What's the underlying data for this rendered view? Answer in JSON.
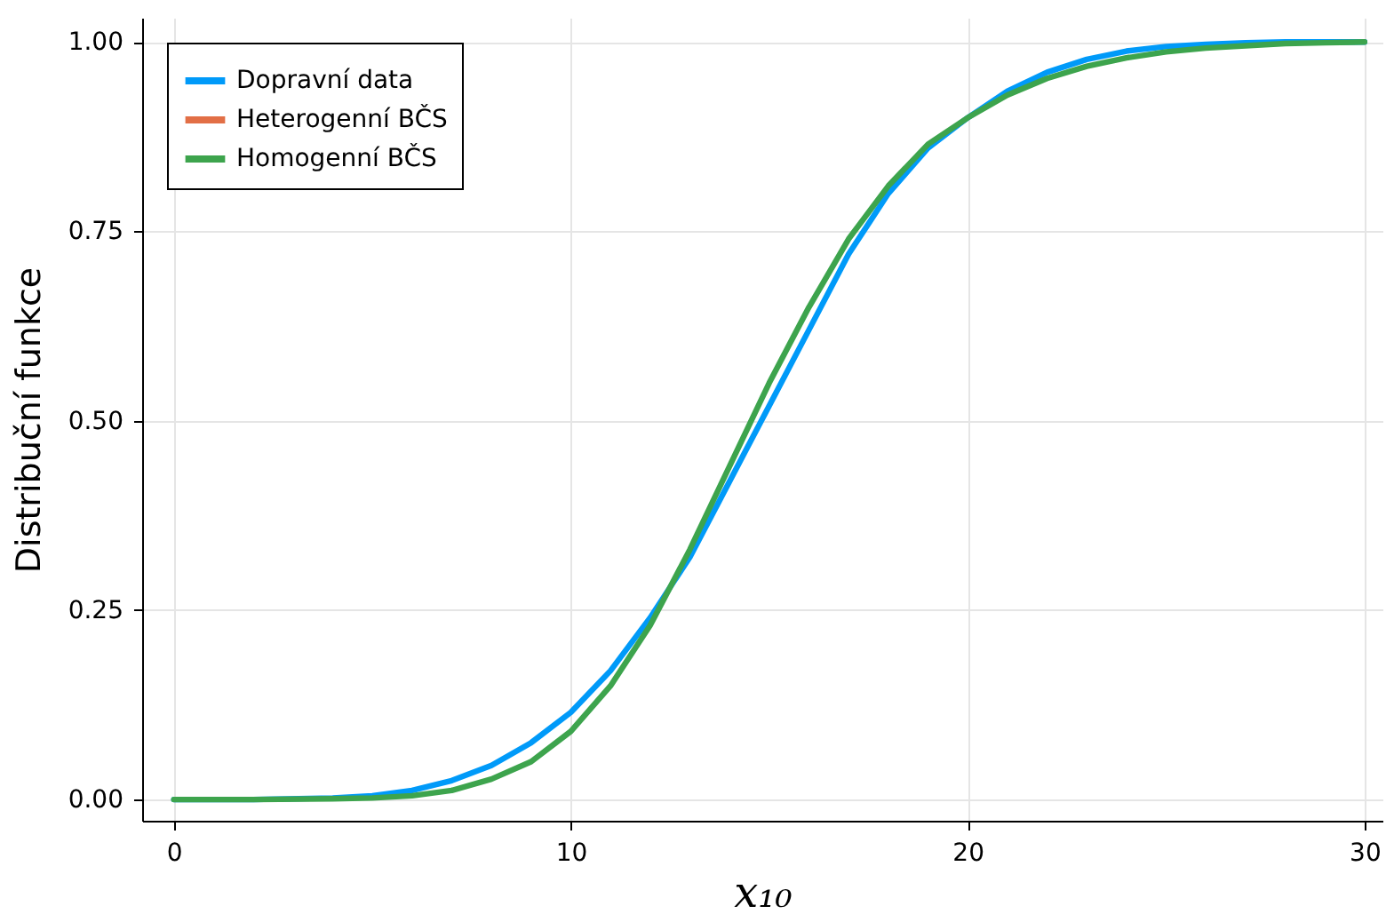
{
  "chart_data": {
    "type": "line",
    "xlabel": "x₁₀",
    "ylabel": "Distribuční funkce",
    "x": [
      0,
      2,
      4,
      5,
      6,
      7,
      8,
      9,
      10,
      11,
      12,
      13,
      14,
      15,
      16,
      17,
      18,
      19,
      20,
      21,
      22,
      23,
      24,
      25,
      26,
      27,
      28,
      29,
      30
    ],
    "series": [
      {
        "name": "Dopravní data",
        "color": "#009af9",
        "values": [
          0,
          0,
          0.002,
          0.005,
          0.012,
          0.025,
          0.045,
          0.075,
          0.115,
          0.17,
          0.24,
          0.32,
          0.42,
          0.52,
          0.62,
          0.72,
          0.8,
          0.86,
          0.9,
          0.935,
          0.96,
          0.977,
          0.988,
          0.994,
          0.997,
          0.999,
          1,
          1,
          1
        ]
      },
      {
        "name": "Heterogenní BČS",
        "color": "#e26f46",
        "values": [
          null,
          null,
          null,
          null,
          null,
          null,
          null,
          null,
          null,
          null,
          null,
          null,
          null,
          null,
          null,
          null,
          null,
          null,
          null,
          null,
          null,
          null,
          null,
          null,
          null,
          null,
          null,
          null,
          null
        ]
      },
      {
        "name": "Homogenní BČS",
        "color": "#3da44d",
        "values": [
          0,
          0,
          0.001,
          0.002,
          0.005,
          0.012,
          0.027,
          0.05,
          0.09,
          0.15,
          0.23,
          0.33,
          0.44,
          0.55,
          0.65,
          0.74,
          0.81,
          0.865,
          0.9,
          0.93,
          0.952,
          0.968,
          0.979,
          0.987,
          0.992,
          0.995,
          0.998,
          0.999,
          1
        ]
      }
    ],
    "xlim": [
      -0.8,
      30.45
    ],
    "ylim": [
      -0.028,
      1.032
    ],
    "xticks": [
      0,
      10,
      20,
      30
    ],
    "yticks": [
      {
        "value": 0,
        "label": "0.00"
      },
      {
        "value": 0.25,
        "label": "0.25"
      },
      {
        "value": 0.5,
        "label": "0.50"
      },
      {
        "value": 0.75,
        "label": "0.75"
      },
      {
        "value": 1,
        "label": "1.00"
      }
    ],
    "grid": true,
    "legend": "top left",
    "line_style": "solid",
    "marker": "none"
  }
}
